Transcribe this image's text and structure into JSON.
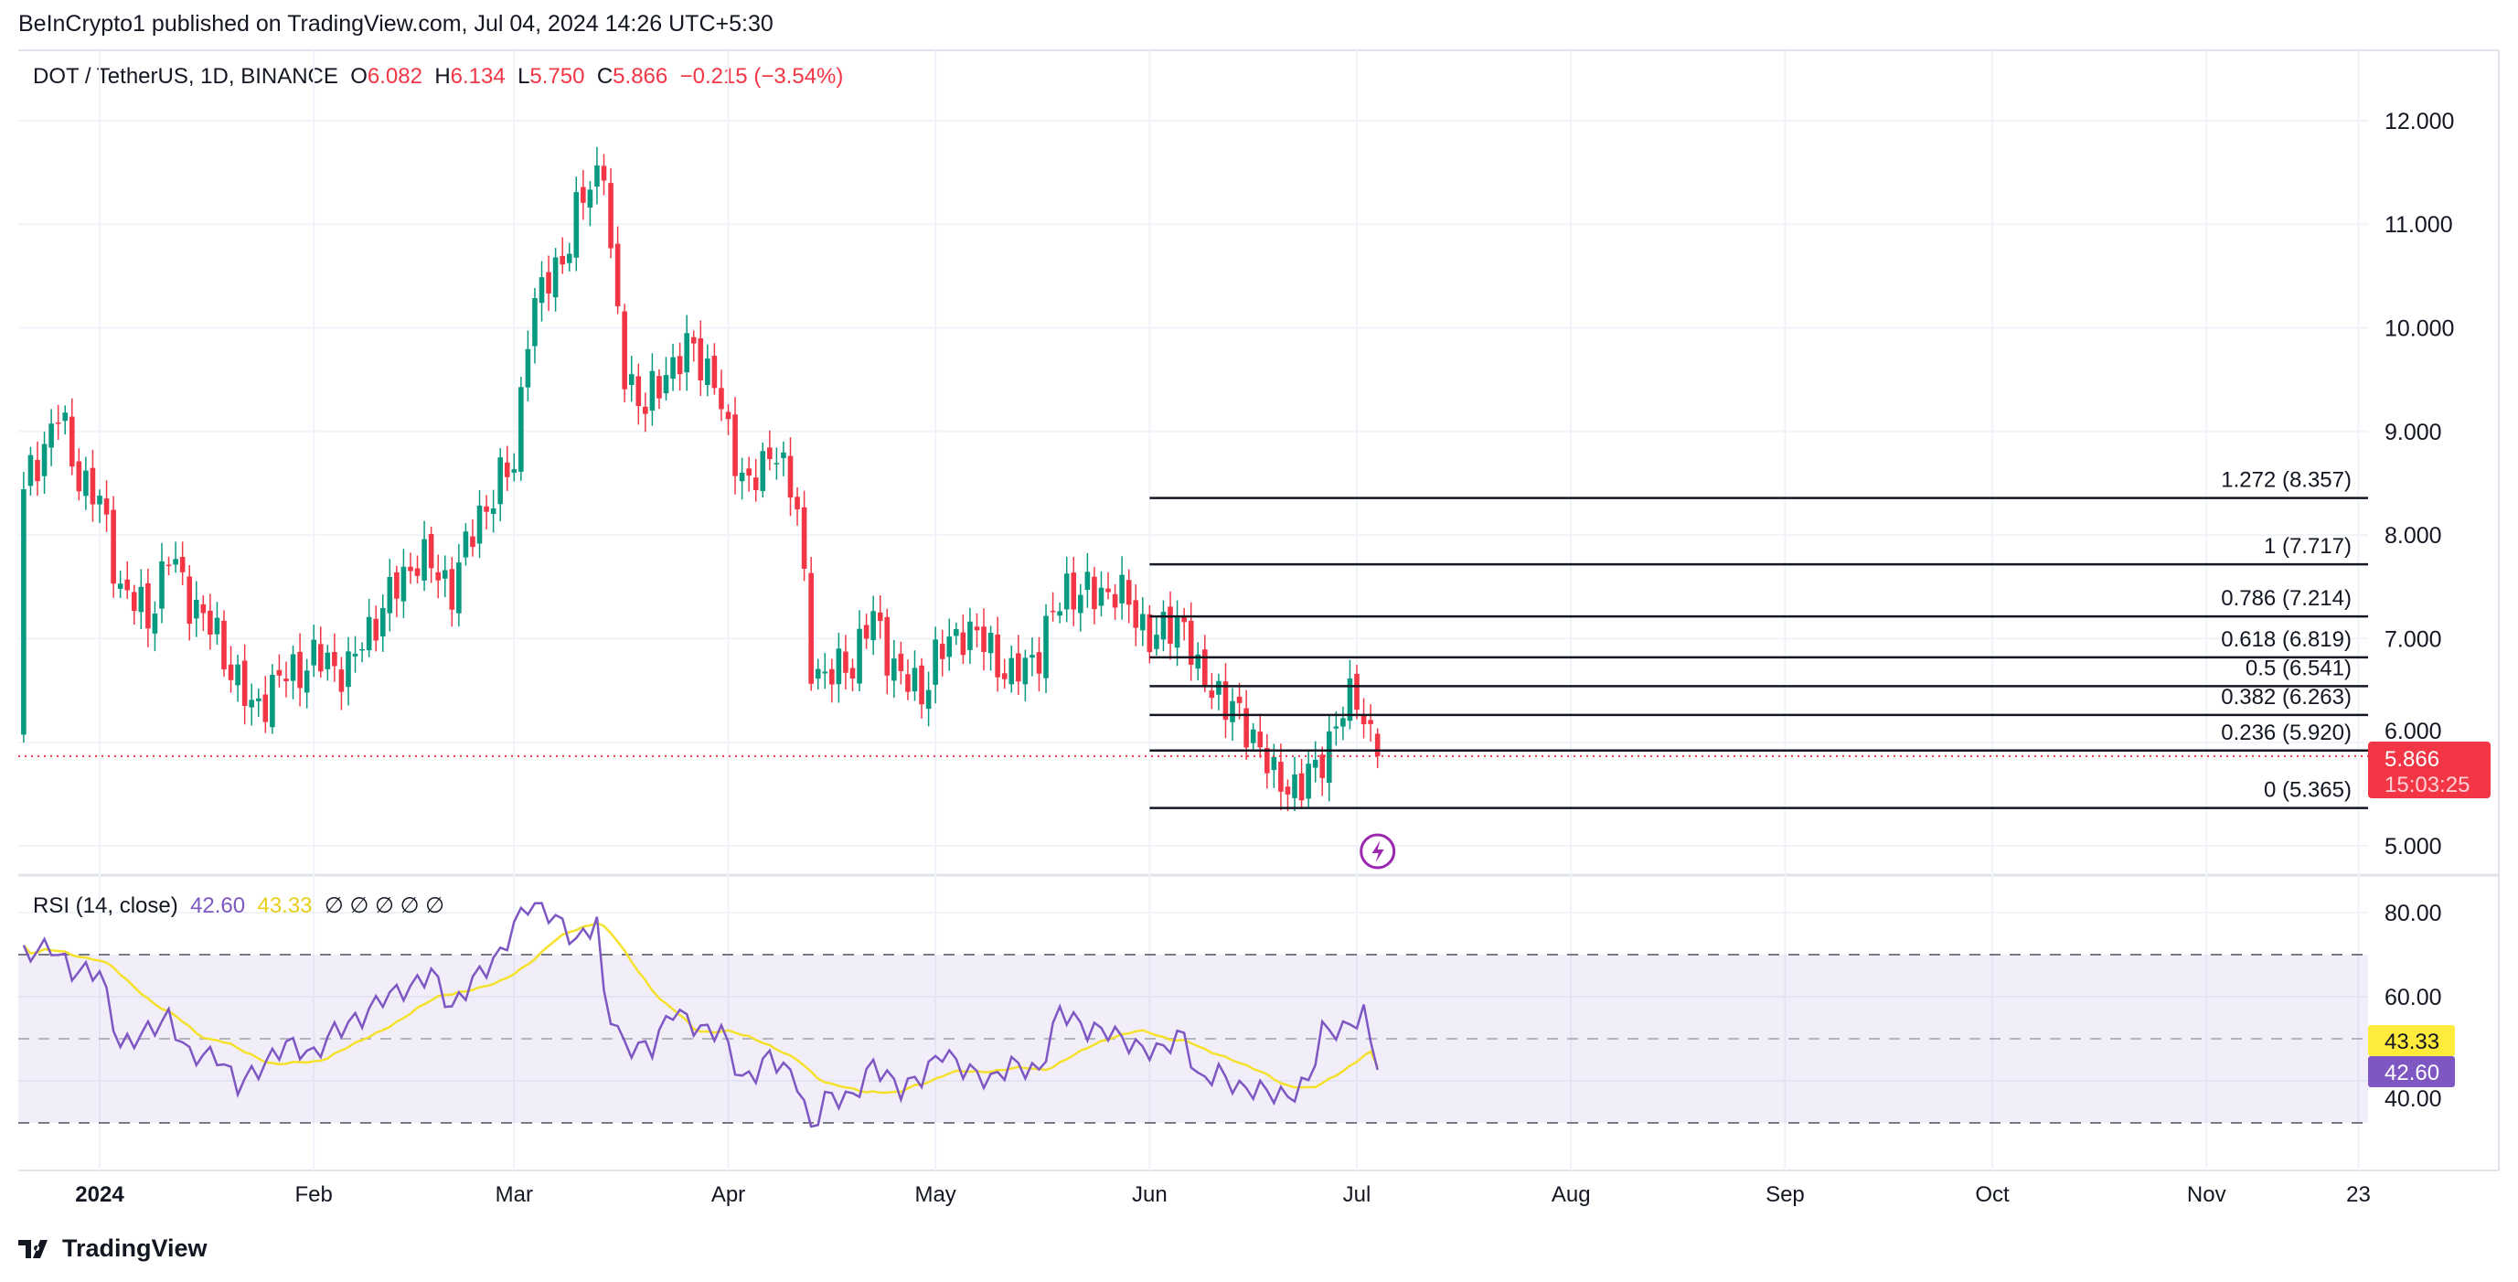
{
  "published": "BeInCrypto1 published on TradingView.com, Jul 04, 2024 14:26 UTC+5:30",
  "legend": {
    "symbol": "DOT / TetherUS, 1D, BINANCE",
    "o_label": "O",
    "o": "6.082",
    "h_label": "H",
    "h": "6.134",
    "l_label": "L",
    "l": "5.750",
    "c_label": "C",
    "c": "5.866",
    "change": "−0.215 (−3.54%)"
  },
  "rsi_legend": {
    "name": "RSI (14, close)",
    "rsi": "42.60",
    "ma": "43.33",
    "extra": "∅ ∅ ∅ ∅ ∅"
  },
  "price_badge": {
    "price": "5.866",
    "countdown": "15:03:25"
  },
  "rsi_badges": {
    "ma": "43.33",
    "rsi": "42.60"
  },
  "footer": {
    "brand": "TradingView"
  },
  "colors": {
    "up": "#089981",
    "down": "#f23645",
    "rsi": "#7e57c2",
    "rsi_ma": "#f5e12b",
    "fib": "#131722"
  },
  "chart_data": [
    {
      "type": "candlestick",
      "title": "DOT / TetherUS, 1D, BINANCE",
      "x_unit": "days since 2024-01-01",
      "close_keyframes": [
        [
          -11,
          8.4
        ],
        [
          -6,
          9.2
        ],
        [
          -4,
          8.7
        ],
        [
          0,
          8.3
        ],
        [
          3,
          7.5
        ],
        [
          7,
          7.2
        ],
        [
          10,
          7.8
        ],
        [
          13,
          7.4
        ],
        [
          17,
          7.0
        ],
        [
          22,
          6.3
        ],
        [
          26,
          6.6
        ],
        [
          31,
          6.8
        ],
        [
          36,
          6.7
        ],
        [
          40,
          7.2
        ],
        [
          46,
          7.8
        ],
        [
          51,
          7.5
        ],
        [
          55,
          8.2
        ],
        [
          60,
          8.7
        ],
        [
          62,
          10.0
        ],
        [
          65,
          10.5
        ],
        [
          68,
          10.8
        ],
        [
          70,
          11.3
        ],
        [
          73,
          11.6
        ],
        [
          74,
          10.6
        ],
        [
          76,
          9.6
        ],
        [
          79,
          9.2
        ],
        [
          82,
          9.6
        ],
        [
          86,
          9.8
        ],
        [
          89,
          9.5
        ],
        [
          91,
          8.9
        ],
        [
          94,
          8.5
        ],
        [
          96,
          8.6
        ],
        [
          98,
          8.9
        ],
        [
          101,
          8.2
        ],
        [
          103,
          6.8
        ],
        [
          105,
          6.6
        ],
        [
          109,
          6.8
        ],
        [
          112,
          7.2
        ],
        [
          116,
          6.6
        ],
        [
          119,
          6.5
        ],
        [
          121,
          6.8
        ],
        [
          125,
          7.1
        ],
        [
          129,
          6.9
        ],
        [
          132,
          6.6
        ],
        [
          136,
          6.9
        ],
        [
          140,
          7.5
        ],
        [
          144,
          7.4
        ],
        [
          147,
          7.5
        ],
        [
          150,
          7.2
        ],
        [
          153,
          7.0
        ],
        [
          157,
          7.2
        ],
        [
          159,
          6.6
        ],
        [
          162,
          6.5
        ],
        [
          165,
          6.2
        ],
        [
          168,
          6.0
        ],
        [
          170,
          5.6
        ],
        [
          174,
          5.6
        ],
        [
          176,
          5.7
        ],
        [
          179,
          6.2
        ],
        [
          182,
          6.45
        ],
        [
          184,
          6.08
        ]
      ],
      "last_candle": {
        "open": 6.082,
        "high": 6.134,
        "low": 5.75,
        "close": 5.866
      },
      "y_ticks": [
        "12.000",
        "11.000",
        "10.000",
        "9.000",
        "8.000",
        "7.000",
        "6.000",
        "5.000"
      ],
      "ylim": [
        5,
        12
      ],
      "x_ticks": [
        {
          "label": "2024",
          "day": 0
        },
        {
          "label": "Feb",
          "day": 31
        },
        {
          "label": "Mar",
          "day": 60
        },
        {
          "label": "Apr",
          "day": 91
        },
        {
          "label": "May",
          "day": 121
        },
        {
          "label": "Jun",
          "day": 152
        },
        {
          "label": "Jul",
          "day": 182
        },
        {
          "label": "Aug",
          "day": 213
        },
        {
          "label": "Sep",
          "day": 244
        },
        {
          "label": "Oct",
          "day": 274
        },
        {
          "label": "Nov",
          "day": 305
        },
        {
          "label": "23",
          "day": 327
        }
      ],
      "fibonacci": {
        "start_day": 152,
        "levels": [
          {
            "label": "1.272 (8.357)",
            "value": 8.357
          },
          {
            "label": "1 (7.717)",
            "value": 7.717
          },
          {
            "label": "0.786 (7.214)",
            "value": 7.214
          },
          {
            "label": "0.618 (6.819)",
            "value": 6.819
          },
          {
            "label": "0.5 (6.541)",
            "value": 6.541
          },
          {
            "label": "0.382 (6.263)",
            "value": 6.263
          },
          {
            "label": "0.236 (5.920)",
            "value": 5.92
          },
          {
            "label": "0 (5.365)",
            "value": 5.365
          }
        ]
      }
    },
    {
      "type": "line",
      "title": "RSI (14, close)",
      "rsi_keyframes": [
        [
          -11,
          70
        ],
        [
          -7,
          72
        ],
        [
          -4,
          66
        ],
        [
          0,
          66
        ],
        [
          3,
          48
        ],
        [
          7,
          52
        ],
        [
          10,
          55
        ],
        [
          13,
          46
        ],
        [
          17,
          46
        ],
        [
          20,
          39
        ],
        [
          24,
          44
        ],
        [
          27,
          49
        ],
        [
          31,
          46
        ],
        [
          34,
          52
        ],
        [
          38,
          55
        ],
        [
          41,
          60
        ],
        [
          45,
          62
        ],
        [
          48,
          66
        ],
        [
          51,
          57
        ],
        [
          54,
          64
        ],
        [
          58,
          70
        ],
        [
          60,
          77
        ],
        [
          62,
          82
        ],
        [
          65,
          80
        ],
        [
          67,
          77
        ],
        [
          69,
          73
        ],
        [
          72,
          78
        ],
        [
          73,
          60
        ],
        [
          76,
          48
        ],
        [
          80,
          48
        ],
        [
          83,
          57
        ],
        [
          87,
          52
        ],
        [
          90,
          52
        ],
        [
          93,
          40
        ],
        [
          95,
          42
        ],
        [
          97,
          46
        ],
        [
          101,
          40
        ],
        [
          103,
          28
        ],
        [
          105,
          36
        ],
        [
          109,
          36
        ],
        [
          112,
          44
        ],
        [
          116,
          38
        ],
        [
          119,
          41
        ],
        [
          122,
          47
        ],
        [
          125,
          43
        ],
        [
          129,
          40
        ],
        [
          132,
          44
        ],
        [
          136,
          42
        ],
        [
          139,
          57
        ],
        [
          143,
          52
        ],
        [
          146,
          52
        ],
        [
          150,
          48
        ],
        [
          153,
          47
        ],
        [
          157,
          51
        ],
        [
          159,
          40
        ],
        [
          162,
          42
        ],
        [
          165,
          38
        ],
        [
          168,
          38
        ],
        [
          172,
          36
        ],
        [
          175,
          40
        ],
        [
          177,
          52
        ],
        [
          180,
          52
        ],
        [
          183,
          56
        ],
        [
          185,
          42.6
        ]
      ],
      "y_ticks": [
        "80.00",
        "60.00",
        "40.00"
      ],
      "bands": [
        70,
        50,
        30
      ],
      "ylim": [
        20,
        90
      ]
    }
  ]
}
